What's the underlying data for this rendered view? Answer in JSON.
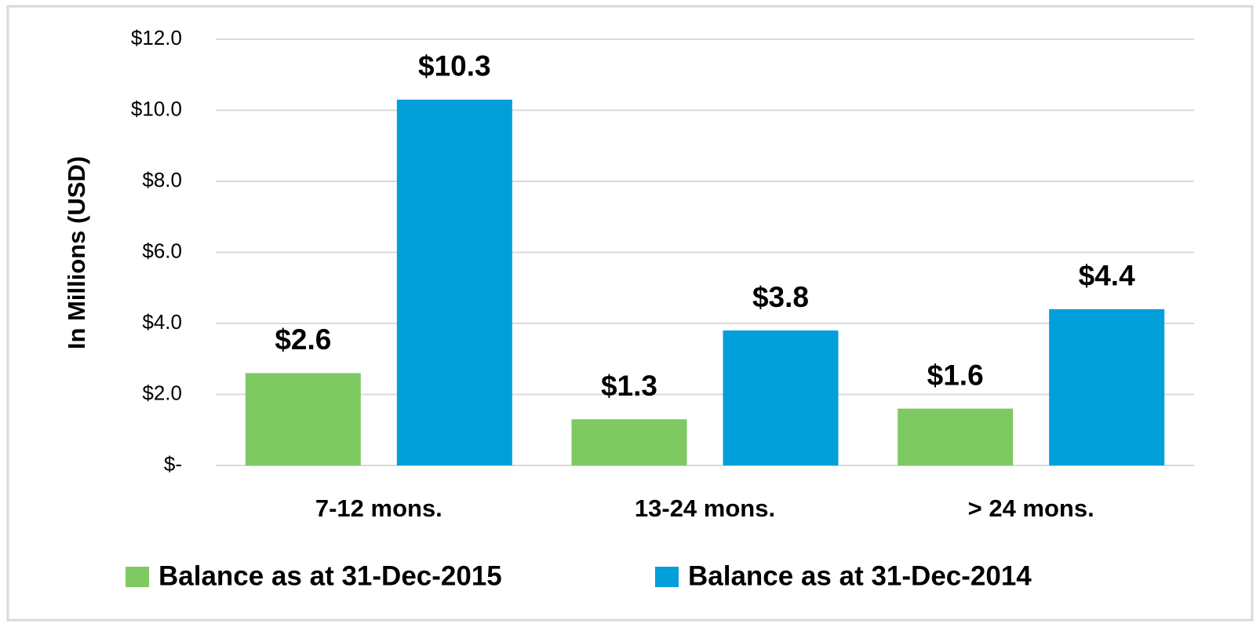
{
  "chart_data": {
    "type": "bar",
    "y_axis_label": "In Millions (USD)",
    "categories": [
      "7-12 mons.",
      "13-24 mons.",
      "> 24 mons."
    ],
    "series": [
      {
        "name": "Balance as at 31-Dec-2015",
        "color": "#7ec962",
        "values": [
          2.6,
          1.3,
          1.6
        ],
        "value_labels": [
          "$2.6",
          "$1.3",
          "$1.6"
        ]
      },
      {
        "name": "Balance as at 31-Dec-2014",
        "color": "#009fda",
        "values": [
          10.3,
          3.8,
          4.4
        ],
        "value_labels": [
          "$10.3",
          "$3.8",
          "$4.4"
        ]
      }
    ],
    "ylim": [
      0,
      12
    ],
    "yticks": [
      {
        "value": 0,
        "label": "$-"
      },
      {
        "value": 2,
        "label": "$2.0"
      },
      {
        "value": 4,
        "label": "$4.0"
      },
      {
        "value": 6,
        "label": "$6.0"
      },
      {
        "value": 8,
        "label": "$8.0"
      },
      {
        "value": 10,
        "label": "$10.0"
      },
      {
        "value": 12,
        "label": "$12.0"
      }
    ],
    "grid": true,
    "legend": "bottom"
  }
}
